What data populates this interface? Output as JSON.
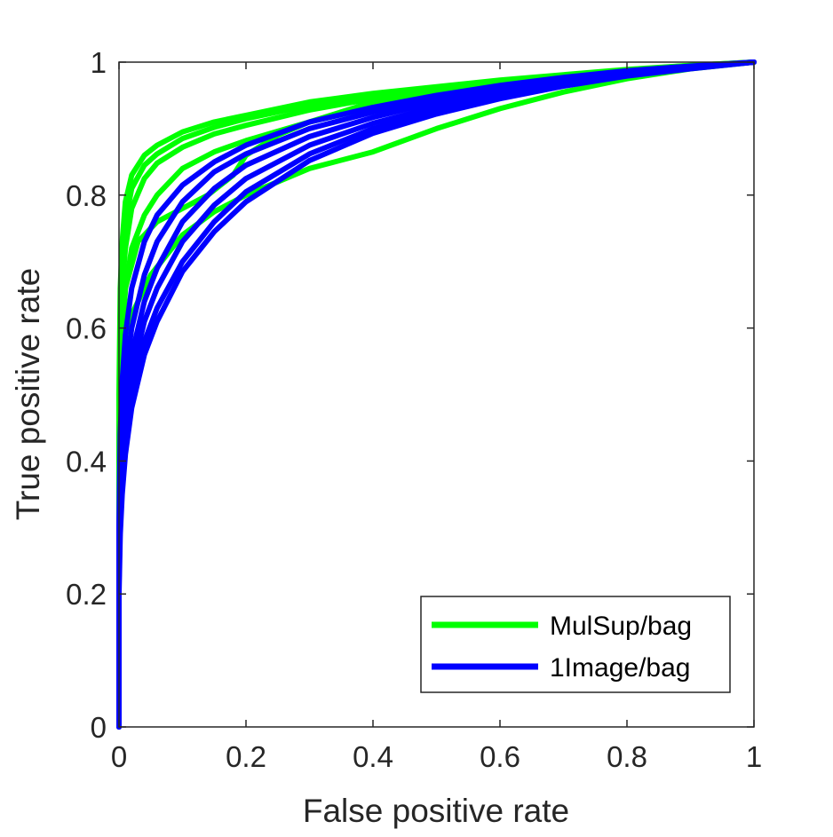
{
  "chart_data": {
    "type": "line",
    "title": "",
    "xlabel": "False positive rate",
    "ylabel": "True positive rate",
    "xlim": [
      0,
      1
    ],
    "ylim": [
      0,
      1
    ],
    "xticks": [
      0,
      0.2,
      0.4,
      0.6,
      0.8,
      1
    ],
    "yticks": [
      0,
      0.2,
      0.4,
      0.6,
      0.8,
      1
    ],
    "xtick_labels": [
      "0",
      "0.2",
      "0.4",
      "0.6",
      "0.8",
      "1"
    ],
    "ytick_labels": [
      "0",
      "0.2",
      "0.4",
      "0.6",
      "0.8",
      "1"
    ],
    "grid": false,
    "legend_position": "bottom-right",
    "series": [
      {
        "name": "MulSup/bag",
        "color": "#00ff00",
        "curves": [
          {
            "x": [
              0,
              0,
              0.002,
              0.005,
              0.01,
              0.02,
              0.04,
              0.06,
              0.1,
              0.15,
              0.2,
              0.3,
              0.4,
              0.5,
              0.6,
              0.7,
              0.8,
              0.9,
              1
            ],
            "y": [
              0,
              0.5,
              0.66,
              0.73,
              0.79,
              0.83,
              0.86,
              0.875,
              0.895,
              0.91,
              0.92,
              0.94,
              0.953,
              0.963,
              0.973,
              0.981,
              0.989,
              0.995,
              1
            ]
          },
          {
            "x": [
              0,
              0,
              0.002,
              0.005,
              0.01,
              0.02,
              0.04,
              0.06,
              0.1,
              0.15,
              0.2,
              0.3,
              0.4,
              0.5,
              0.6,
              0.7,
              0.8,
              0.9,
              1
            ],
            "y": [
              0,
              0.45,
              0.62,
              0.7,
              0.76,
              0.81,
              0.845,
              0.862,
              0.885,
              0.902,
              0.915,
              0.935,
              0.95,
              0.962,
              0.972,
              0.98,
              0.988,
              0.995,
              1
            ]
          },
          {
            "x": [
              0,
              0,
              0.002,
              0.005,
              0.01,
              0.02,
              0.04,
              0.06,
              0.1,
              0.15,
              0.2,
              0.3,
              0.4,
              0.5,
              0.6,
              0.7,
              0.8,
              0.9,
              1
            ],
            "y": [
              0,
              0.4,
              0.58,
              0.66,
              0.72,
              0.78,
              0.825,
              0.848,
              0.872,
              0.892,
              0.905,
              0.928,
              0.945,
              0.958,
              0.969,
              0.978,
              0.987,
              0.994,
              1
            ]
          },
          {
            "x": [
              0,
              0,
              0.002,
              0.005,
              0.01,
              0.02,
              0.04,
              0.06,
              0.1,
              0.15,
              0.2,
              0.3,
              0.4,
              0.5,
              0.6,
              0.7,
              0.8,
              0.9,
              1
            ],
            "y": [
              0,
              0.35,
              0.52,
              0.6,
              0.66,
              0.72,
              0.77,
              0.8,
              0.84,
              0.865,
              0.882,
              0.91,
              0.932,
              0.948,
              0.962,
              0.974,
              0.985,
              0.993,
              1
            ]
          },
          {
            "x": [
              0,
              0,
              0.002,
              0.005,
              0.01,
              0.02,
              0.05,
              0.1,
              0.15,
              0.2,
              0.25,
              0.3,
              0.4,
              0.5,
              0.6,
              0.7,
              0.8,
              0.9,
              1
            ],
            "y": [
              0,
              0.3,
              0.45,
              0.52,
              0.57,
              0.62,
              0.68,
              0.74,
              0.775,
              0.8,
              0.82,
              0.84,
              0.865,
              0.9,
              0.93,
              0.955,
              0.975,
              0.99,
              1
            ]
          },
          {
            "x": [
              0,
              0,
              0.005,
              0.01,
              0.03,
              0.06,
              0.1,
              0.14,
              0.18,
              0.2,
              0.25,
              0.3,
              0.4,
              0.5,
              0.6,
              0.7,
              0.8,
              0.9,
              1
            ],
            "y": [
              0,
              0.35,
              0.58,
              0.66,
              0.73,
              0.76,
              0.78,
              0.8,
              0.83,
              0.86,
              0.89,
              0.91,
              0.94,
              0.955,
              0.968,
              0.978,
              0.987,
              0.994,
              1
            ]
          }
        ]
      },
      {
        "name": "1Image/bag",
        "color": "#0000ff",
        "curves": [
          {
            "x": [
              0,
              0,
              0.002,
              0.005,
              0.01,
              0.02,
              0.04,
              0.06,
              0.1,
              0.15,
              0.2,
              0.3,
              0.4,
              0.5,
              0.6,
              0.7,
              0.8,
              0.9,
              1
            ],
            "y": [
              0,
              0.28,
              0.4,
              0.47,
              0.53,
              0.6,
              0.68,
              0.73,
              0.79,
              0.835,
              0.862,
              0.9,
              0.925,
              0.945,
              0.962,
              0.975,
              0.985,
              0.993,
              1
            ]
          },
          {
            "x": [
              0,
              0,
              0.002,
              0.005,
              0.01,
              0.02,
              0.04,
              0.06,
              0.1,
              0.15,
              0.2,
              0.3,
              0.4,
              0.5,
              0.6,
              0.7,
              0.8,
              0.9,
              1
            ],
            "y": [
              0,
              0.26,
              0.37,
              0.43,
              0.49,
              0.56,
              0.64,
              0.69,
              0.76,
              0.81,
              0.845,
              0.888,
              0.917,
              0.94,
              0.958,
              0.972,
              0.984,
              0.992,
              1
            ]
          },
          {
            "x": [
              0,
              0,
              0.002,
              0.005,
              0.01,
              0.02,
              0.04,
              0.06,
              0.1,
              0.15,
              0.2,
              0.3,
              0.4,
              0.5,
              0.6,
              0.7,
              0.8,
              0.9,
              1
            ],
            "y": [
              0,
              0.24,
              0.34,
              0.4,
              0.46,
              0.53,
              0.61,
              0.66,
              0.73,
              0.785,
              0.825,
              0.875,
              0.908,
              0.933,
              0.953,
              0.969,
              0.982,
              0.992,
              1
            ]
          },
          {
            "x": [
              0,
              0,
              0.002,
              0.005,
              0.01,
              0.02,
              0.04,
              0.06,
              0.1,
              0.15,
              0.2,
              0.3,
              0.4,
              0.5,
              0.6,
              0.7,
              0.8,
              0.9,
              1
            ],
            "y": [
              0,
              0.22,
              0.31,
              0.37,
              0.43,
              0.5,
              0.58,
              0.63,
              0.7,
              0.76,
              0.805,
              0.862,
              0.9,
              0.927,
              0.948,
              0.966,
              0.98,
              0.991,
              1
            ]
          },
          {
            "x": [
              0,
              0,
              0.002,
              0.005,
              0.01,
              0.02,
              0.04,
              0.06,
              0.1,
              0.15,
              0.2,
              0.3,
              0.4,
              0.5,
              0.6,
              0.7,
              0.8,
              0.9,
              1
            ],
            "y": [
              0,
              0.3,
              0.44,
              0.52,
              0.59,
              0.66,
              0.73,
              0.77,
              0.815,
              0.85,
              0.875,
              0.91,
              0.932,
              0.95,
              0.965,
              0.977,
              0.987,
              0.994,
              1
            ]
          },
          {
            "x": [
              0,
              0,
              0.002,
              0.005,
              0.01,
              0.02,
              0.04,
              0.06,
              0.1,
              0.15,
              0.2,
              0.3,
              0.4,
              0.5,
              0.6,
              0.7,
              0.8,
              0.9,
              1
            ],
            "y": [
              0,
              0.2,
              0.29,
              0.35,
              0.41,
              0.48,
              0.56,
              0.61,
              0.685,
              0.745,
              0.79,
              0.852,
              0.893,
              0.922,
              0.945,
              0.964,
              0.979,
              0.99,
              1
            ]
          }
        ]
      }
    ]
  },
  "colors": {
    "axis": "#262626",
    "legend_border": "#262626"
  }
}
